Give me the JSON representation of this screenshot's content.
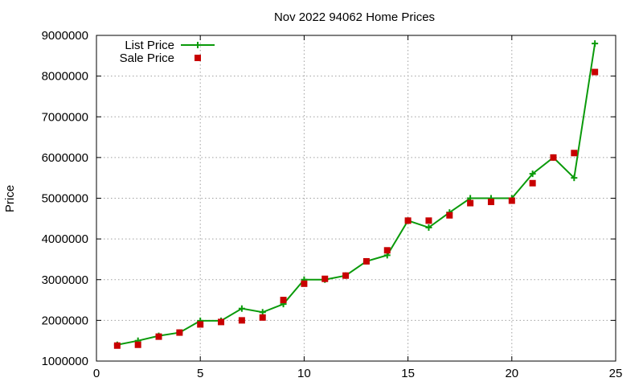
{
  "chart_data": {
    "type": "line",
    "title": "Nov 2022 94062 Home Prices",
    "xlabel": "",
    "ylabel": "Price",
    "xlim": [
      0,
      25
    ],
    "ylim": [
      1000000,
      9000000
    ],
    "x_ticks": [
      0,
      5,
      10,
      15,
      20,
      25
    ],
    "y_ticks": [
      1000000,
      2000000,
      3000000,
      4000000,
      5000000,
      6000000,
      7000000,
      8000000,
      9000000
    ],
    "grid": true,
    "legend_position": "top-left",
    "series": [
      {
        "name": "List Price",
        "style": "line+cross",
        "color": "#0a9a0a",
        "x": [
          1,
          2,
          3,
          4,
          5,
          6,
          7,
          8,
          9,
          10,
          11,
          12,
          13,
          14,
          15,
          16,
          17,
          18,
          19,
          20,
          21,
          22,
          23,
          24
        ],
        "values": [
          1400000,
          1500000,
          1620000,
          1700000,
          1990000,
          1990000,
          2290000,
          2200000,
          2400000,
          3000000,
          3000000,
          3100000,
          3450000,
          3600000,
          4450000,
          4280000,
          4650000,
          5000000,
          5000000,
          5000000,
          5600000,
          6000000,
          5500000,
          8800000
        ]
      },
      {
        "name": "Sale Price",
        "style": "square",
        "color": "#c80000",
        "x": [
          1,
          2,
          3,
          4,
          5,
          6,
          7,
          8,
          9,
          10,
          11,
          12,
          13,
          14,
          15,
          16,
          17,
          18,
          19,
          20,
          21,
          22,
          23,
          24
        ],
        "values": [
          1380000,
          1400000,
          1600000,
          1700000,
          1900000,
          1960000,
          2000000,
          2070000,
          2500000,
          2900000,
          3020000,
          3100000,
          3450000,
          3720000,
          4450000,
          4450000,
          4580000,
          4880000,
          4910000,
          4940000,
          5370000,
          6000000,
          6110000,
          8100000
        ]
      }
    ]
  }
}
